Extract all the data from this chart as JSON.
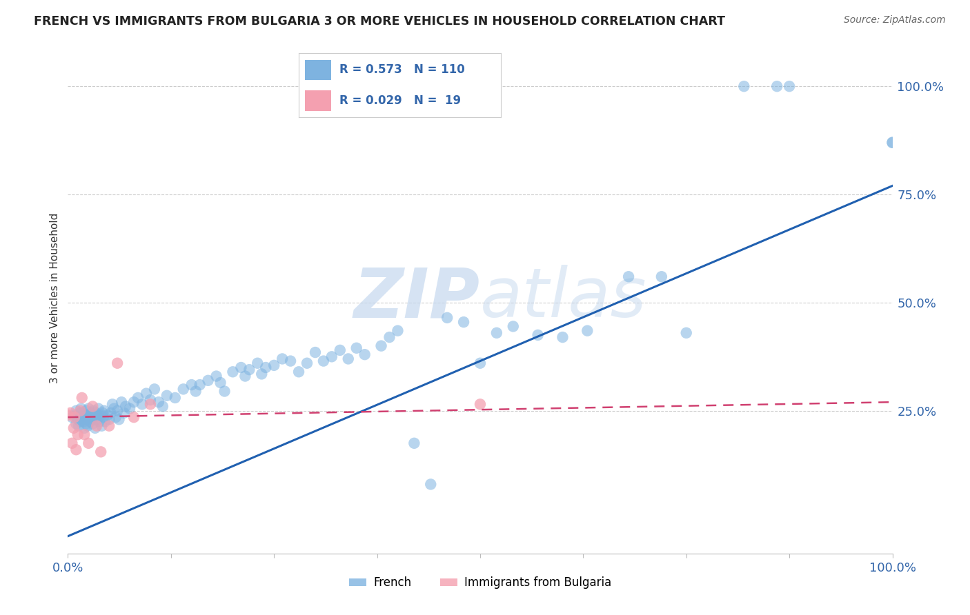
{
  "title": "FRENCH VS IMMIGRANTS FROM BULGARIA 3 OR MORE VEHICLES IN HOUSEHOLD CORRELATION CHART",
  "source": "Source: ZipAtlas.com",
  "ylabel": "3 or more Vehicles in Household",
  "french_R": 0.573,
  "french_N": 110,
  "bulgaria_R": 0.029,
  "bulgaria_N": 19,
  "french_color": "#7EB3E0",
  "french_line_color": "#2060B0",
  "bulgaria_color": "#F4A0B0",
  "bulgaria_line_color": "#D04070",
  "watermark_color": "#C5D8EE",
  "background_color": "#FFFFFF",
  "xlim": [
    0.0,
    1.0
  ],
  "ylim": [
    -0.08,
    1.1
  ],
  "french_line_x0": 0.0,
  "french_line_y0": -0.04,
  "french_line_x1": 1.0,
  "french_line_y1": 0.77,
  "bulgaria_line_x0": 0.0,
  "bulgaria_line_y0": 0.235,
  "bulgaria_line_x1": 1.0,
  "bulgaria_line_y1": 0.27,
  "french_x": [
    0.005,
    0.008,
    0.01,
    0.01,
    0.012,
    0.013,
    0.015,
    0.015,
    0.016,
    0.017,
    0.018,
    0.019,
    0.02,
    0.02,
    0.021,
    0.022,
    0.022,
    0.023,
    0.024,
    0.025,
    0.025,
    0.026,
    0.027,
    0.028,
    0.029,
    0.03,
    0.031,
    0.032,
    0.033,
    0.034,
    0.035,
    0.036,
    0.037,
    0.038,
    0.04,
    0.041,
    0.042,
    0.043,
    0.044,
    0.045,
    0.048,
    0.05,
    0.052,
    0.054,
    0.056,
    0.058,
    0.06,
    0.062,
    0.065,
    0.068,
    0.07,
    0.075,
    0.08,
    0.085,
    0.09,
    0.095,
    0.1,
    0.105,
    0.11,
    0.115,
    0.12,
    0.13,
    0.14,
    0.15,
    0.155,
    0.16,
    0.17,
    0.18,
    0.185,
    0.19,
    0.2,
    0.21,
    0.215,
    0.22,
    0.23,
    0.235,
    0.24,
    0.25,
    0.26,
    0.27,
    0.28,
    0.29,
    0.3,
    0.31,
    0.32,
    0.33,
    0.34,
    0.35,
    0.36,
    0.38,
    0.39,
    0.4,
    0.42,
    0.44,
    0.46,
    0.48,
    0.5,
    0.52,
    0.54,
    0.57,
    0.6,
    0.63,
    0.68,
    0.72,
    0.75,
    0.82,
    0.86,
    0.875,
    1.0,
    1.0
  ],
  "french_y": [
    0.235,
    0.24,
    0.22,
    0.25,
    0.23,
    0.215,
    0.245,
    0.225,
    0.255,
    0.235,
    0.245,
    0.225,
    0.24,
    0.21,
    0.235,
    0.25,
    0.22,
    0.23,
    0.215,
    0.24,
    0.255,
    0.235,
    0.225,
    0.245,
    0.23,
    0.22,
    0.25,
    0.235,
    0.21,
    0.245,
    0.24,
    0.23,
    0.255,
    0.225,
    0.24,
    0.215,
    0.245,
    0.235,
    0.25,
    0.225,
    0.24,
    0.23,
    0.245,
    0.265,
    0.255,
    0.235,
    0.25,
    0.23,
    0.27,
    0.245,
    0.26,
    0.255,
    0.27,
    0.28,
    0.265,
    0.29,
    0.275,
    0.3,
    0.27,
    0.26,
    0.285,
    0.28,
    0.3,
    0.31,
    0.295,
    0.31,
    0.32,
    0.33,
    0.315,
    0.295,
    0.34,
    0.35,
    0.33,
    0.345,
    0.36,
    0.335,
    0.35,
    0.355,
    0.37,
    0.365,
    0.34,
    0.36,
    0.385,
    0.365,
    0.375,
    0.39,
    0.37,
    0.395,
    0.38,
    0.4,
    0.42,
    0.435,
    0.175,
    0.08,
    0.465,
    0.455,
    0.36,
    0.43,
    0.445,
    0.425,
    0.42,
    0.435,
    0.56,
    0.56,
    0.43,
    1.0,
    1.0,
    1.0,
    0.87,
    0.87
  ],
  "bulgaria_x": [
    0.0,
    0.003,
    0.005,
    0.007,
    0.008,
    0.01,
    0.012,
    0.015,
    0.017,
    0.02,
    0.025,
    0.03,
    0.035,
    0.04,
    0.05,
    0.06,
    0.08,
    0.1,
    0.5
  ],
  "bulgaria_y": [
    0.24,
    0.245,
    0.175,
    0.21,
    0.235,
    0.16,
    0.195,
    0.25,
    0.28,
    0.195,
    0.175,
    0.26,
    0.215,
    0.155,
    0.215,
    0.36,
    0.235,
    0.265,
    0.265
  ]
}
